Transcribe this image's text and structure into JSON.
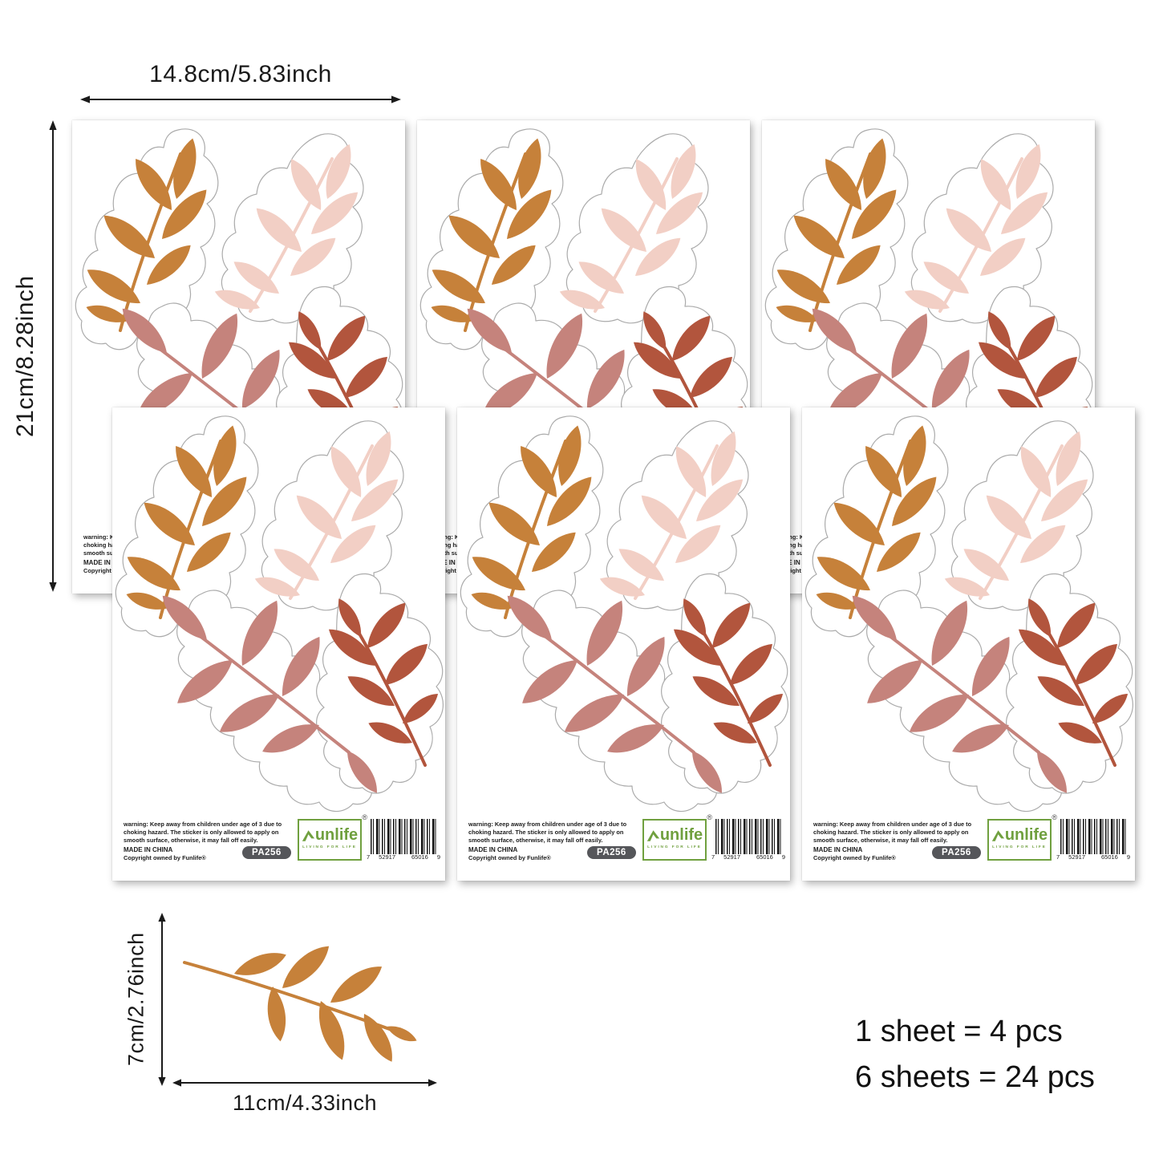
{
  "annotations": {
    "sheet_width": "14.8cm/5.83inch",
    "sheet_height": "21cm/8.28inch",
    "leaf_height": "7cm/2.76inch",
    "leaf_width": "11cm/4.33inch",
    "pcs_line1": "1 sheet = 4 pcs",
    "pcs_line2": "6 sheets = 24 pcs"
  },
  "sheet_footer": {
    "warning": "warning: Keep away from children under age of 3 due to choking hazard. The sticker is only allowed to apply on smooth surface, otherwise, it may fall off easily.",
    "made_in": "MADE IN CHINA",
    "copyright": "Copyright owned by Funlife®",
    "sku": "PA256",
    "logo": {
      "brand": "unlife",
      "tagline": "LIVING FOR LIFE",
      "registered": "®"
    },
    "barcode": {
      "lead": "7",
      "group1": "52917",
      "group2": "65016",
      "end": "9"
    }
  },
  "colors": {
    "leaf_orange": "#C6813A",
    "leaf_pink": "#F2CFC5",
    "leaf_mauve": "#C5837C",
    "leaf_rust": "#B2553D",
    "logo_green": "#70A03F",
    "sku_badge_gray": "#55565A",
    "annotation_text": "#1A1A1A"
  },
  "sheets": {
    "count": 6,
    "stickers_per_sheet": 4
  }
}
